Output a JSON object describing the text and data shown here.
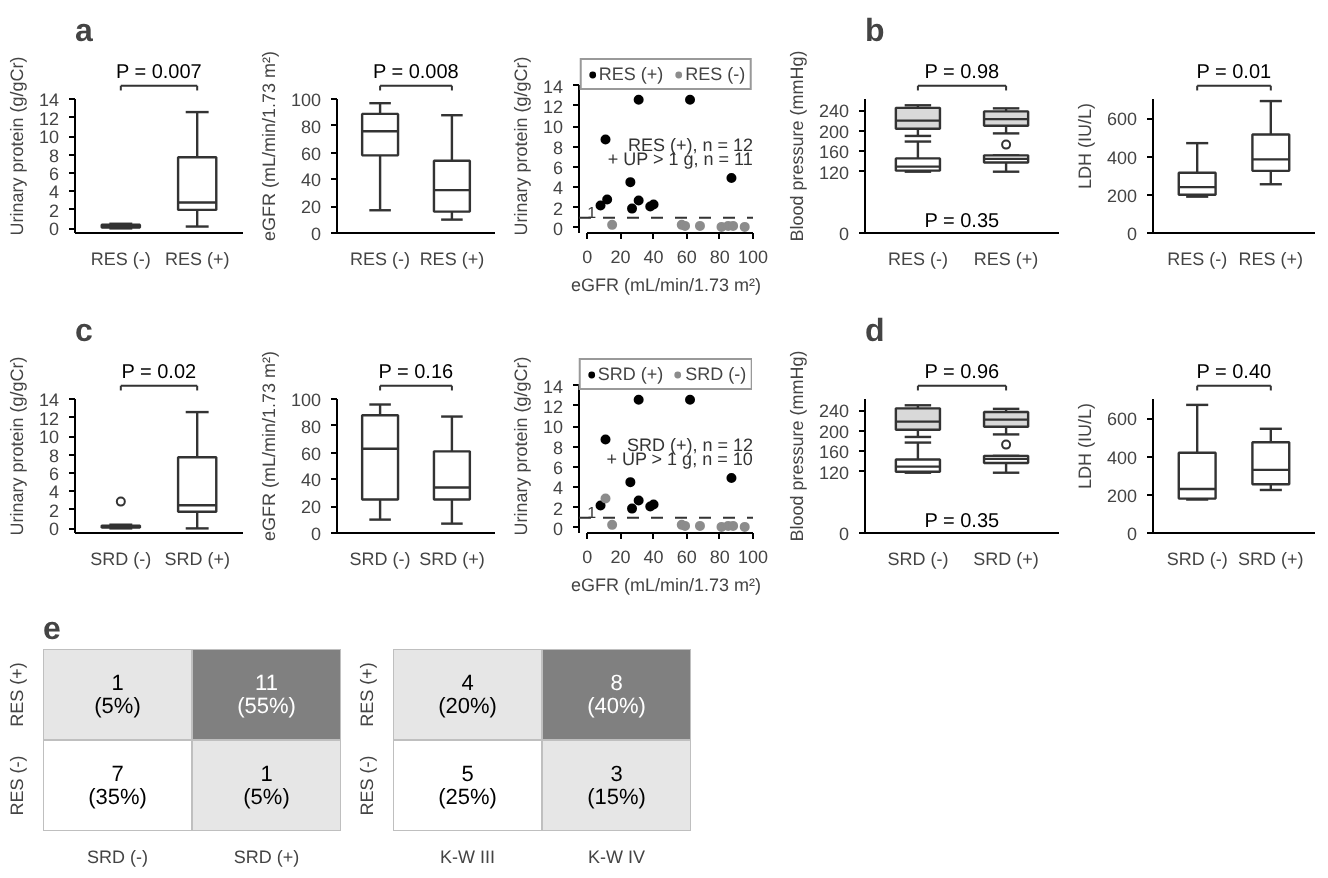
{
  "chart_data": [
    {
      "type": "box",
      "title": "a",
      "ylabel": "Urinary protein (g/gCr)",
      "categories": [
        "RES (-)",
        "RES (+)"
      ],
      "boxes": [
        {
          "low": 0,
          "q1": 0.1,
          "median": 0.2,
          "q3": 0.4,
          "high": 0.5
        },
        {
          "low": 0.2,
          "q1": 2.0,
          "median": 2.8,
          "q3": 7.7,
          "high": 12.6
        }
      ],
      "ylim": [
        -0.5,
        14
      ],
      "yticks": [
        0,
        2,
        4,
        6,
        8,
        10,
        12,
        14
      ],
      "annotations": [
        "P = 0.007"
      ]
    },
    {
      "type": "box",
      "ylabel": "eGFR (mL/min/1.73 m²)",
      "categories": [
        "RES (-)",
        "RES (+)"
      ],
      "boxes": [
        {
          "low": 17,
          "q1": 58,
          "median": 76,
          "q3": 89,
          "high": 97
        },
        {
          "low": 10,
          "q1": 16,
          "median": 32,
          "q3": 54,
          "high": 88
        }
      ],
      "ylim": [
        0,
        100
      ],
      "yticks": [
        0,
        20,
        40,
        60,
        80,
        100
      ],
      "annotations": [
        "P = 0.008"
      ]
    },
    {
      "type": "scatter",
      "xlabel": "eGFR (mL/min/1.73 m²)",
      "ylabel": "Urinary protein (g/gCr)",
      "legend": "top",
      "series": [
        {
          "name": "RES (+)",
          "color": "#000000",
          "x": [
            8,
            11,
            12,
            26,
            27,
            31,
            31,
            38,
            40,
            62,
            87
          ],
          "values": [
            2.2,
            8.7,
            2.8,
            4.5,
            1.9,
            12.6,
            2.7,
            2.1,
            2.3,
            12.6,
            4.9
          ]
        },
        {
          "name": "RES (-)",
          "color": "#8c8c8c",
          "x": [
            15,
            57,
            59,
            68,
            81,
            85,
            88,
            95
          ],
          "values": [
            0.3,
            0.3,
            0.2,
            0.2,
            0.1,
            0.2,
            0.2,
            0.1
          ]
        }
      ],
      "ref_lines": [
        {
          "axis": "y",
          "value": 1,
          "line_style": "dashed",
          "label": "1"
        }
      ],
      "xlim": [
        0,
        100
      ],
      "xticks": [
        0,
        20,
        40,
        60,
        80,
        100
      ],
      "ylim": [
        -0.5,
        14
      ],
      "yticks": [
        0,
        2,
        4,
        6,
        8,
        10,
        12,
        14
      ],
      "annotations": [
        "RES (+), n = 12",
        "+ UP > 1 g, n = 11"
      ]
    },
    {
      "type": "box",
      "title": "b",
      "ylabel": "Blood pressure (mmHg)",
      "categories": [
        "RES (-)",
        "RES (+)"
      ],
      "series": [
        {
          "color": "#d9d9d9",
          "boxes": [
            {
              "low": 190,
              "q1": 204,
              "median": 220,
              "q3": 245,
              "high": 250
            },
            {
              "low": 195,
              "q1": 210,
              "median": 223,
              "q3": 238,
              "high": 244
            }
          ]
        },
        {
          "color": "#ffffff",
          "boxes": [
            {
              "low": 120,
              "q1": 122,
              "median": 130,
              "q3": 146,
              "high": 179
            },
            {
              "low": 120,
              "q1": 138,
              "median": 145,
              "q3": 152,
              "high": 152,
              "outliers": [
                173
              ]
            }
          ]
        }
      ],
      "ylim": [
        0,
        262
      ],
      "yticks": [
        0,
        120,
        160,
        200,
        240
      ],
      "annotations": [
        "P = 0.98",
        "P = 0.35"
      ]
    },
    {
      "type": "box",
      "ylabel": "LDH (IU/L)",
      "categories": [
        "RES (-)",
        "RES (+)"
      ],
      "boxes": [
        {
          "low": 190,
          "q1": 200,
          "median": 240,
          "q3": 315,
          "high": 470
        },
        {
          "low": 255,
          "q1": 325,
          "median": 385,
          "q3": 515,
          "high": 690
        }
      ],
      "ylim": [
        0,
        700
      ],
      "yticks": [
        0,
        200,
        400,
        600
      ],
      "annotations": [
        "P = 0.01"
      ]
    },
    {
      "type": "box",
      "title": "c",
      "ylabel": "Urinary protein (g/gCr)",
      "categories": [
        "SRD (-)",
        "SRD (+)"
      ],
      "boxes": [
        {
          "low": 0,
          "q1": 0.1,
          "median": 0.2,
          "q3": 0.3,
          "high": 0.4,
          "outliers": [
            2.9
          ]
        },
        {
          "low": 0,
          "q1": 1.8,
          "median": 2.5,
          "q3": 7.7,
          "high": 12.6
        }
      ],
      "ylim": [
        -0.5,
        14
      ],
      "yticks": [
        0,
        2,
        4,
        6,
        8,
        10,
        12,
        14
      ],
      "annotations": [
        "P = 0.02"
      ]
    },
    {
      "type": "box",
      "ylabel": "eGFR (mL/min/1.73 m²)",
      "categories": [
        "SRD (-)",
        "SRD (+)"
      ],
      "boxes": [
        {
          "low": 10,
          "q1": 25,
          "median": 63,
          "q3": 88,
          "high": 96
        },
        {
          "low": 7,
          "q1": 25,
          "median": 34,
          "q3": 61,
          "high": 87
        }
      ],
      "ylim": [
        0,
        100
      ],
      "yticks": [
        0,
        20,
        40,
        60,
        80,
        100
      ],
      "annotations": [
        "P = 0.16"
      ]
    },
    {
      "type": "scatter",
      "xlabel": "eGFR (mL/min/1.73 m²)",
      "ylabel": "Urinary protein (g/gCr)",
      "legend": "top",
      "series": [
        {
          "name": "SRD (+)",
          "color": "#000000",
          "x": [
            8,
            11,
            26,
            27,
            31,
            31,
            38,
            40,
            62,
            87
          ],
          "values": [
            2.2,
            8.7,
            4.5,
            1.9,
            12.6,
            2.7,
            2.1,
            2.3,
            12.6,
            4.9
          ]
        },
        {
          "name": "SRD (-)",
          "color": "#8c8c8c",
          "x": [
            11,
            15,
            57,
            59,
            68,
            81,
            85,
            88,
            95
          ],
          "values": [
            2.9,
            0.3,
            0.3,
            0.2,
            0.2,
            0.1,
            0.2,
            0.2,
            0.1
          ]
        }
      ],
      "ref_lines": [
        {
          "axis": "y",
          "value": 1,
          "line_style": "dashed",
          "label": "1"
        }
      ],
      "xlim": [
        0,
        100
      ],
      "xticks": [
        0,
        20,
        40,
        60,
        80,
        100
      ],
      "ylim": [
        -0.5,
        14
      ],
      "yticks": [
        0,
        2,
        4,
        6,
        8,
        10,
        12,
        14
      ],
      "annotations": [
        "SRD (+), n = 12",
        "+ UP > 1 g, n = 10"
      ]
    },
    {
      "type": "box",
      "title": "d",
      "ylabel": "Blood pressure (mmHg)",
      "categories": [
        "SRD (-)",
        "SRD (+)"
      ],
      "series": [
        {
          "color": "#d9d9d9",
          "boxes": [
            {
              "low": 188,
              "q1": 202,
              "median": 218,
              "q3": 244,
              "high": 250
            },
            {
              "low": 193,
              "q1": 208,
              "median": 222,
              "q3": 237,
              "high": 243
            }
          ]
        },
        {
          "color": "#ffffff",
          "boxes": [
            {
              "low": 118,
              "q1": 120,
              "median": 130,
              "q3": 144,
              "high": 177
            },
            {
              "low": 118,
              "q1": 137,
              "median": 145,
              "q3": 151,
              "high": 151,
              "outliers": [
                173
              ]
            }
          ]
        }
      ],
      "ylim": [
        0,
        262
      ],
      "yticks": [
        0,
        120,
        160,
        200,
        240
      ],
      "annotations": [
        "P = 0.96",
        "P = 0.35"
      ]
    },
    {
      "type": "box",
      "ylabel": "LDH (IU/L)",
      "categories": [
        "SRD (-)",
        "SRD (+)"
      ],
      "boxes": [
        {
          "low": 175,
          "q1": 180,
          "median": 230,
          "q3": 420,
          "high": 670
        },
        {
          "low": 225,
          "q1": 255,
          "median": 330,
          "q3": 475,
          "high": 545
        }
      ],
      "ylim": [
        0,
        700
      ],
      "yticks": [
        0,
        200,
        400,
        600
      ],
      "annotations": [
        "P = 0.40"
      ]
    },
    {
      "type": "heatmap",
      "title": "e",
      "categories": [
        "SRD (-)",
        "SRD (+)"
      ],
      "y_categories": [
        "RES (+)",
        "RES (-)"
      ],
      "cells": [
        [
          1,
          11
        ],
        [
          7,
          1
        ]
      ],
      "data_labels": true,
      "annotations": [
        "(5%)",
        "(55%)",
        "(35%)",
        "(5%)"
      ],
      "colors": [
        [
          "#e6e6e6",
          "#808080"
        ],
        [
          "#ffffff",
          "#e6e6e6"
        ]
      ]
    },
    {
      "type": "heatmap",
      "categories": [
        "K-W III",
        "K-W IV"
      ],
      "y_categories": [
        "RES (+)",
        "RES (-)"
      ],
      "cells": [
        [
          4,
          8
        ],
        [
          5,
          3
        ]
      ],
      "data_labels": true,
      "annotations": [
        "(20%)",
        "(40%)",
        "(25%)",
        "(15%)"
      ],
      "colors": [
        [
          "#e6e6e6",
          "#808080"
        ],
        [
          "#ffffff",
          "#e6e6e6"
        ]
      ]
    }
  ]
}
